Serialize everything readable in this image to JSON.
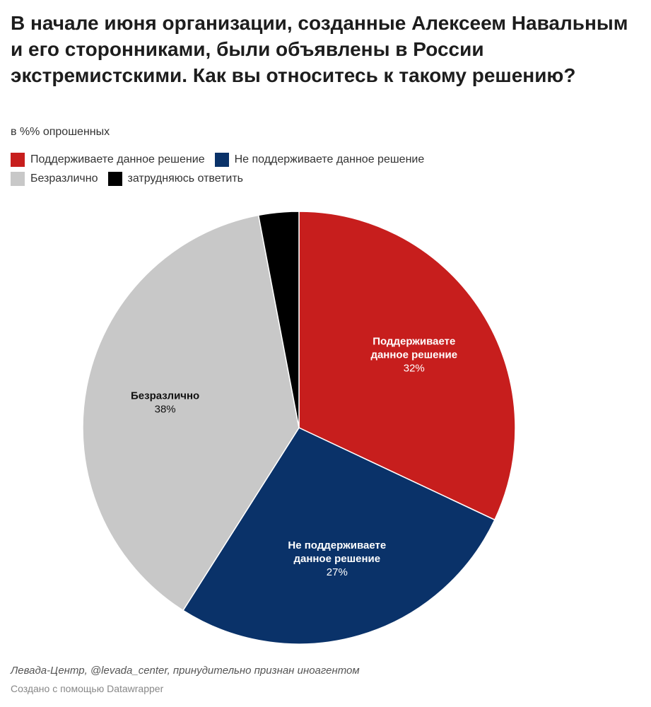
{
  "title": "В начале июня организации, созданные Алексеем Навальным и его сторонниками, были объявлены в России экстремистскими. Как вы относитесь к такому решению?",
  "subtitle": "в %% опрошенных",
  "source": "Левада-Центр, @levada_center, принудительно признан иноагентом",
  "credit": "Создано с помощью Datawrapper",
  "chart_data": {
    "type": "pie",
    "unit": "%",
    "legend_position": "top",
    "start": "top, clockwise",
    "slices": [
      {
        "label": "Поддерживаете данное решение",
        "label_lines": [
          "Поддерживаете",
          "данное решение"
        ],
        "value": 32,
        "value_label": "32%",
        "color": "#c71e1d",
        "label_color": "#ffffff"
      },
      {
        "label": "Не поддерживаете данное решение",
        "label_lines": [
          "Не поддерживаете",
          "данное решение"
        ],
        "value": 27,
        "value_label": "27%",
        "color": "#0a3269",
        "label_color": "#ffffff"
      },
      {
        "label": "Безразлично",
        "label_lines": [
          "Безразлично"
        ],
        "value": 38,
        "value_label": "38%",
        "color": "#c8c8c8",
        "label_color": "#111111"
      },
      {
        "label": "затрудняюсь ответить",
        "label_lines": [],
        "value": 3,
        "value_label": "",
        "color": "#000000",
        "label_color": "#ffffff"
      }
    ]
  }
}
